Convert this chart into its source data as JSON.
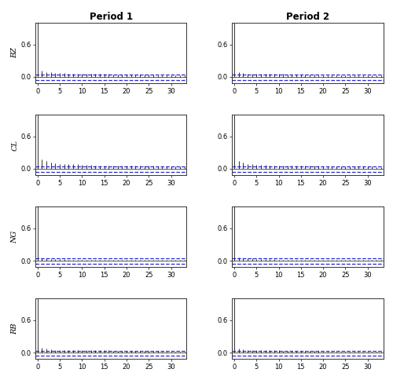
{
  "title_col1": "Period 1",
  "title_col2": "Period 2",
  "row_labels": [
    "BZ",
    "CL",
    "NG",
    "RB"
  ],
  "xlim": [
    -0.5,
    33.5
  ],
  "ylim": [
    -0.12,
    1.0
  ],
  "yticks": [
    0.0,
    0.6
  ],
  "xticks": [
    0,
    5,
    10,
    15,
    20,
    25,
    30
  ],
  "n_lags": 33,
  "conf": 0.038,
  "conf_lower": -0.055,
  "bar_color": "#111111",
  "conf_color": "#0000cc",
  "figsize": [
    5.0,
    4.84
  ],
  "dpi": 100,
  "background": "#ffffff",
  "title_fontsize": 8.5,
  "label_fontsize": 7,
  "tick_fontsize": 6,
  "acf_values": {
    "BZ_P1": [
      1.0,
      0.12,
      0.09,
      0.08,
      0.07,
      0.07,
      0.07,
      0.06,
      0.06,
      0.06,
      0.06,
      0.05,
      0.05,
      0.05,
      0.05,
      0.05,
      0.05,
      0.04,
      0.04,
      0.04,
      0.04,
      0.04,
      0.04,
      0.04,
      0.04,
      0.04,
      0.04,
      0.03,
      0.03,
      0.03,
      0.03,
      0.03,
      0.03,
      0.03
    ],
    "BZ_P2": [
      1.0,
      0.08,
      0.07,
      0.06,
      0.05,
      0.05,
      0.05,
      0.05,
      0.05,
      0.05,
      0.05,
      0.05,
      0.04,
      0.04,
      0.04,
      0.04,
      0.04,
      0.04,
      0.04,
      0.03,
      0.03,
      0.03,
      0.03,
      0.03,
      0.03,
      0.03,
      0.03,
      0.03,
      0.03,
      0.03,
      0.03,
      0.02,
      0.02,
      0.02
    ],
    "CL_P1": [
      1.0,
      0.18,
      0.14,
      0.12,
      0.1,
      0.09,
      0.09,
      0.08,
      0.08,
      0.08,
      0.07,
      0.07,
      0.07,
      0.06,
      0.06,
      0.06,
      0.06,
      0.06,
      0.05,
      0.05,
      0.05,
      0.05,
      0.05,
      0.05,
      0.05,
      0.05,
      0.05,
      0.04,
      0.04,
      0.04,
      0.04,
      0.04,
      0.04,
      0.04
    ],
    "CL_P2": [
      1.0,
      0.14,
      0.11,
      0.09,
      0.08,
      0.07,
      0.07,
      0.07,
      0.06,
      0.06,
      0.06,
      0.06,
      0.06,
      0.05,
      0.05,
      0.05,
      0.05,
      0.05,
      0.05,
      0.05,
      0.04,
      0.04,
      0.04,
      0.04,
      0.04,
      0.04,
      0.04,
      0.04,
      0.04,
      0.04,
      0.04,
      0.04,
      0.03,
      0.03
    ],
    "NG_P1": [
      1.0,
      0.05,
      0.04,
      0.03,
      0.03,
      0.03,
      0.03,
      0.02,
      0.02,
      0.02,
      0.02,
      0.02,
      0.02,
      0.02,
      0.02,
      0.02,
      0.02,
      0.02,
      0.02,
      0.02,
      0.02,
      0.01,
      0.01,
      0.01,
      0.01,
      0.01,
      0.01,
      0.01,
      0.01,
      0.01,
      0.01,
      0.01,
      0.01,
      0.01
    ],
    "NG_P2": [
      1.0,
      0.06,
      0.05,
      0.04,
      0.04,
      0.03,
      0.03,
      0.03,
      0.03,
      0.03,
      0.02,
      0.02,
      0.02,
      0.02,
      0.02,
      0.02,
      0.02,
      0.02,
      0.02,
      0.02,
      0.02,
      0.02,
      0.02,
      0.02,
      0.02,
      0.02,
      0.01,
      0.01,
      0.01,
      0.01,
      0.01,
      0.01,
      0.01,
      0.01
    ],
    "RB_P1": [
      1.0,
      0.09,
      0.07,
      0.06,
      0.05,
      0.05,
      0.05,
      0.05,
      0.05,
      0.04,
      0.04,
      0.04,
      0.04,
      0.04,
      0.04,
      0.04,
      0.04,
      0.03,
      0.03,
      0.03,
      0.03,
      0.03,
      0.03,
      0.03,
      0.03,
      0.03,
      0.03,
      0.03,
      0.02,
      0.02,
      0.02,
      0.02,
      0.02,
      0.02
    ],
    "RB_P2": [
      1.0,
      0.07,
      0.06,
      0.05,
      0.05,
      0.04,
      0.04,
      0.04,
      0.04,
      0.04,
      0.04,
      0.03,
      0.03,
      0.03,
      0.03,
      0.03,
      0.03,
      0.03,
      0.03,
      0.03,
      0.02,
      0.02,
      0.02,
      0.02,
      0.02,
      0.02,
      0.02,
      0.02,
      0.02,
      0.02,
      0.02,
      0.02,
      0.02,
      0.02
    ]
  }
}
